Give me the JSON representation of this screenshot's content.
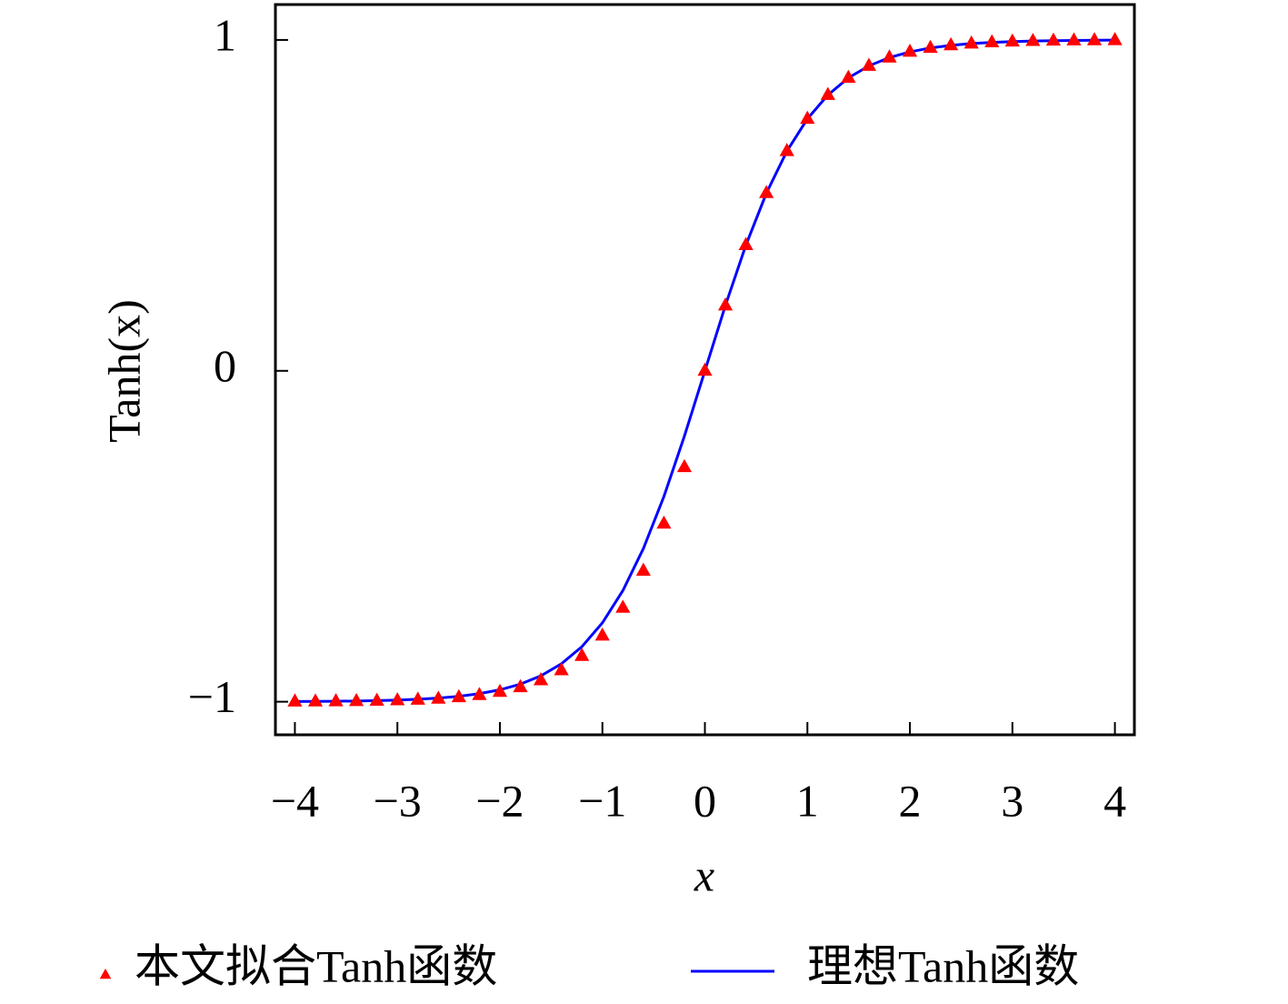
{
  "chart_data": {
    "type": "line",
    "x_label": "x",
    "y_label": "Tanh(x)",
    "x": [
      -4,
      -3.8,
      -3.6,
      -3.4,
      -3.2,
      -3,
      -2.8,
      -2.6,
      -2.4,
      -2.2,
      -2,
      -1.8,
      -1.6,
      -1.4,
      -1.2,
      -1,
      -0.8,
      -0.6,
      -0.4,
      -0.2,
      0,
      0.2,
      0.4,
      0.6,
      0.8,
      1,
      1.2,
      1.4,
      1.6,
      1.8,
      2,
      2.2,
      2.4,
      2.6,
      2.8,
      3,
      3.2,
      3.4,
      3.6,
      3.8,
      4
    ],
    "series": [
      {
        "name": "本文拟合Tanh函数",
        "color": "#ff0000",
        "marker": "triangle",
        "values": [
          -0.9995,
          -0.9992,
          -0.9988,
          -0.9982,
          -0.9973,
          -0.9959,
          -0.994,
          -0.991,
          -0.9866,
          -0.9801,
          -0.9705,
          -0.9562,
          -0.9354,
          -0.9051,
          -0.8617,
          -0.8005,
          -0.7163,
          -0.6044,
          -0.4621,
          -0.2913,
          0,
          0.1974,
          0.3799,
          0.537,
          0.664,
          0.7616,
          0.8337,
          0.8854,
          0.9217,
          0.9468,
          0.964,
          0.9757,
          0.9837,
          0.989,
          0.9926,
          0.9951,
          0.9967,
          0.9978,
          0.9985,
          0.999,
          0.9993
        ]
      },
      {
        "name": "理想Tanh函数",
        "color": "#0000ff",
        "marker": "line",
        "values": [
          -0.9993,
          -0.999,
          -0.9985,
          -0.9978,
          -0.9967,
          -0.9951,
          -0.9926,
          -0.989,
          -0.9837,
          -0.9757,
          -0.964,
          -0.9468,
          -0.9217,
          -0.8854,
          -0.8337,
          -0.7616,
          -0.664,
          -0.537,
          -0.3799,
          -0.1974,
          0,
          0.1974,
          0.3799,
          0.537,
          0.664,
          0.7616,
          0.8337,
          0.8854,
          0.9217,
          0.9468,
          0.964,
          0.9757,
          0.9837,
          0.989,
          0.9926,
          0.9951,
          0.9967,
          0.9978,
          0.9985,
          0.999,
          0.9993
        ]
      }
    ],
    "xlim": [
      -4.19,
      4.19
    ],
    "ylim": [
      -1.1,
      1.107
    ],
    "xticks": [
      {
        "value": -4,
        "label": "−4"
      },
      {
        "value": -3,
        "label": "−3"
      },
      {
        "value": -2,
        "label": "−2"
      },
      {
        "value": -1,
        "label": "−1"
      },
      0,
      1,
      2,
      3,
      4
    ],
    "yticks": [
      {
        "value": -1,
        "label": "−1"
      },
      0,
      1
    ],
    "grid": false,
    "legend": "bottom"
  }
}
